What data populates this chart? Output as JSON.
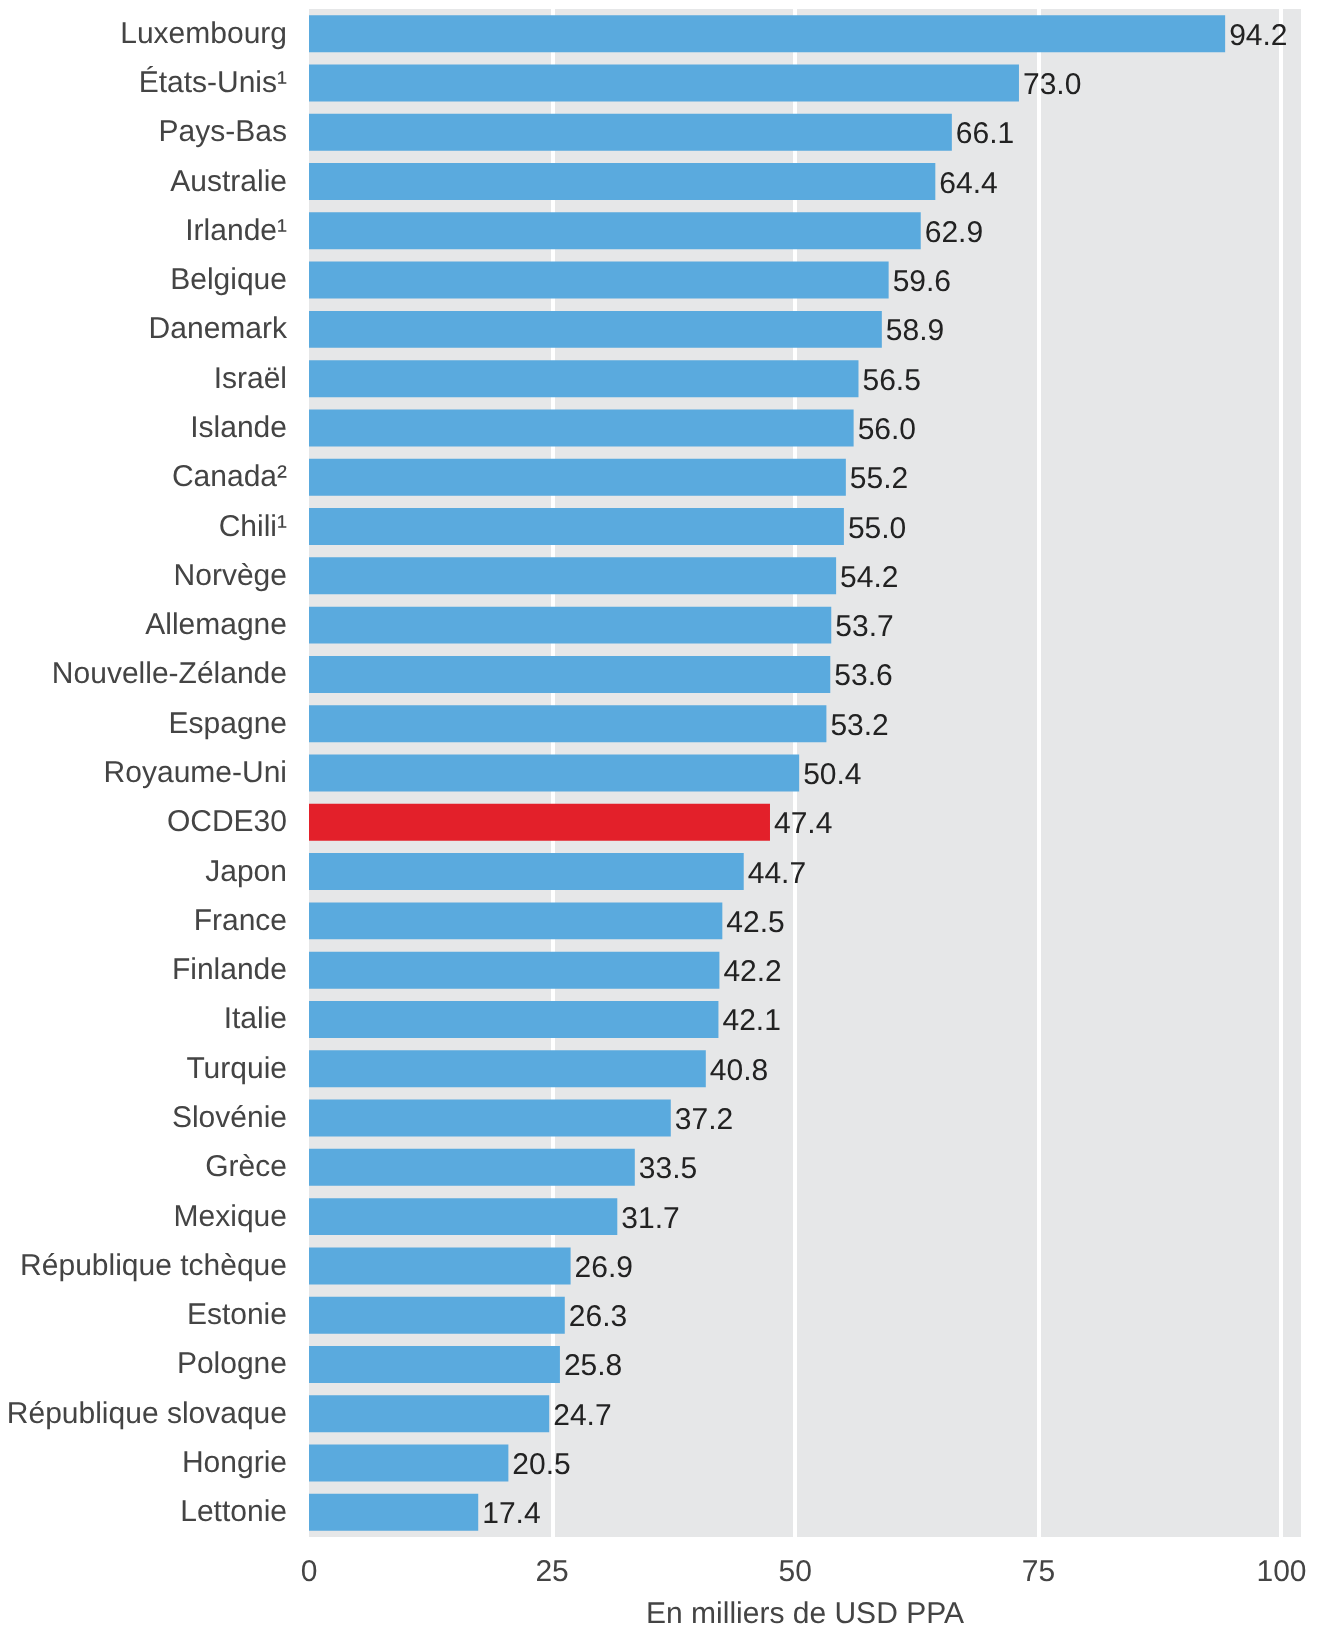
{
  "chart_data": {
    "type": "bar",
    "orientation": "horizontal",
    "xlabel": "En milliers de USD PPA",
    "categories": [
      "Luxembourg",
      "États-Unis¹",
      "Pays-Bas",
      "Australie",
      "Irlande¹",
      "Belgique",
      "Danemark",
      "Israël",
      "Islande",
      "Canada²",
      "Chili¹",
      "Norvège",
      "Allemagne",
      "Nouvelle-Zélande",
      "Espagne",
      "Royaume-Uni",
      "OCDE30",
      "Japon",
      "France",
      "Finlande",
      "Italie",
      "Turquie",
      "Slovénie",
      "Grèce",
      "Mexique",
      "République tchèque",
      "Estonie",
      "Pologne",
      "République slovaque",
      "Hongrie",
      "Lettonie"
    ],
    "values": [
      94.2,
      73.0,
      66.1,
      64.4,
      62.9,
      59.6,
      58.9,
      56.5,
      56.0,
      55.2,
      55.0,
      54.2,
      53.7,
      53.6,
      53.2,
      50.4,
      47.4,
      44.7,
      42.5,
      42.2,
      42.1,
      40.8,
      37.2,
      33.5,
      31.7,
      26.9,
      26.3,
      25.8,
      24.7,
      20.5,
      17.4
    ],
    "colors": [
      "#5aaade",
      "#5aaade",
      "#5aaade",
      "#5aaade",
      "#5aaade",
      "#5aaade",
      "#5aaade",
      "#5aaade",
      "#5aaade",
      "#5aaade",
      "#5aaade",
      "#5aaade",
      "#5aaade",
      "#5aaade",
      "#5aaade",
      "#5aaade",
      "#e3202a",
      "#5aaade",
      "#5aaade",
      "#5aaade",
      "#5aaade",
      "#5aaade",
      "#5aaade",
      "#5aaade",
      "#5aaade",
      "#5aaade",
      "#5aaade",
      "#5aaade",
      "#5aaade",
      "#5aaade",
      "#5aaade"
    ],
    "value_labels": [
      "94.2",
      "73.0",
      "66.1",
      "64.4",
      "62.9",
      "59.6",
      "58.9",
      "56.5",
      "56.0",
      "55.2",
      "55.0",
      "54.2",
      "53.7",
      "53.6",
      "53.2",
      "50.4",
      "47.4",
      "44.7",
      "42.5",
      "42.2",
      "42.1",
      "40.8",
      "37.2",
      "33.5",
      "31.7",
      "26.9",
      "26.3",
      "25.8",
      "24.7",
      "20.5",
      "17.4"
    ],
    "xlim": [
      0,
      102
    ],
    "xticks": [
      0,
      25,
      50,
      75,
      100
    ],
    "grid": "x"
  }
}
